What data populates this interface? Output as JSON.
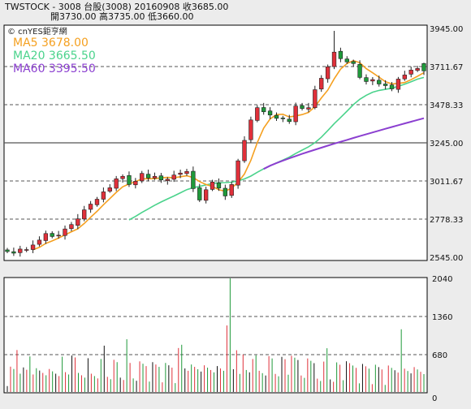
{
  "header": {
    "line1": "TWSTOCK - 3008 台股(3008) 20160908   收3685.00",
    "line2": "開3730.00   高3735.00   低3660.00"
  },
  "legend": {
    "source": "© cnYES鉅亨網",
    "ma5": "MA5 3678.00",
    "ma20": "MA20 3665.50",
    "ma60": "MA60 3395.50"
  },
  "colors": {
    "up": "#e0303a",
    "down": "#1f9a3a",
    "ma5": "#f5a020",
    "ma20": "#4bd38c",
    "ma60": "#8b3fd0"
  },
  "chart_data": [
    {
      "type": "candlestick",
      "title": "",
      "ylim": [
        2545,
        3945
      ],
      "yticks": [
        3945.0,
        3711.67,
        3478.33,
        3245.0,
        3011.67,
        2778.33,
        2545.0
      ],
      "ytick_labels": [
        "3945.00",
        "3711.67",
        "3478.33",
        "3245.00",
        "3011.67",
        "2778.33",
        "2545.00"
      ],
      "last_close": 3685,
      "last_open": 3730,
      "last_high": 3735,
      "last_low": 3660,
      "ma5_last": 3678,
      "ma20_last": 3665.5,
      "ma60_last": 3395.5,
      "ma60_approx_start": 3085,
      "num_sessions": 60
    },
    {
      "type": "bar",
      "title": "",
      "ylim": [
        0,
        2040
      ],
      "yticks": [
        2040,
        1360,
        680,
        0
      ],
      "ytick_labels": [
        "2040",
        "1360",
        "680",
        "0"
      ]
    }
  ]
}
